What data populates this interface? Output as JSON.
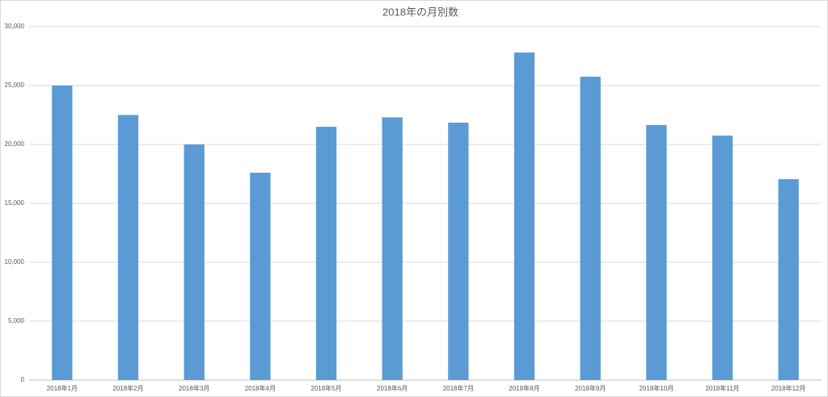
{
  "chart_data": {
    "type": "bar",
    "title": "2018年の月別数",
    "categories": [
      "2018年1月",
      "2018年2月",
      "2018年3月",
      "2018年4月",
      "2018年5月",
      "2018年6月",
      "2018年7月",
      "2018年8月",
      "2018年9月",
      "2018年10月",
      "2018年11月",
      "2018年12月"
    ],
    "values": [
      25000,
      22500,
      20000,
      17600,
      21500,
      22300,
      21850,
      27800,
      25750,
      21650,
      20750,
      17050
    ],
    "color": "#5b9bd5",
    "ylim": [
      0,
      30000
    ],
    "yticks": [
      0,
      {
        "value": 5000,
        "label": "5,000"
      },
      {
        "value": 10000,
        "label": "10,000"
      },
      {
        "value": 15000,
        "label": "15,000"
      },
      {
        "value": 20000,
        "label": "20,000"
      },
      {
        "value": 25000,
        "label": "25,000"
      },
      {
        "value": 30000,
        "label": "30,000"
      }
    ],
    "grid": true
  }
}
